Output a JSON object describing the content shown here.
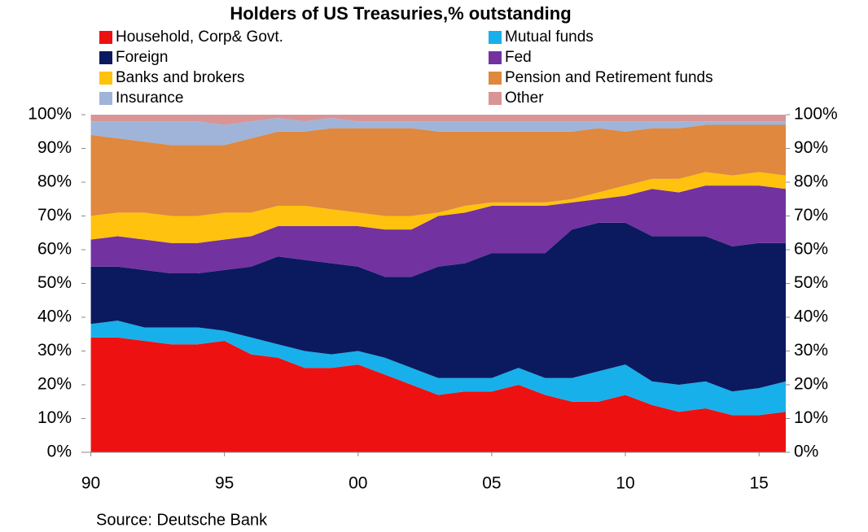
{
  "chart_data": {
    "type": "stacked-area",
    "title": "Holders of US Treasuries,% outstanding",
    "source": "Source: Deutsche Bank",
    "x": [
      1990,
      1991,
      1992,
      1993,
      1994,
      1995,
      1996,
      1997,
      1998,
      1999,
      2000,
      2001,
      2002,
      2003,
      2004,
      2005,
      2006,
      2007,
      2008,
      2009,
      2010,
      2011,
      2012,
      2013,
      2014,
      2015,
      2016
    ],
    "xlim": [
      1989.8,
      2016
    ],
    "xticks": [
      {
        "value": 1990,
        "label": "90"
      },
      {
        "value": 1995,
        "label": "95"
      },
      {
        "value": 2000,
        "label": "00"
      },
      {
        "value": 2005,
        "label": "05"
      },
      {
        "value": 2010,
        "label": "10"
      },
      {
        "value": 2015,
        "label": "15"
      }
    ],
    "ylim": [
      0,
      100
    ],
    "yticks": [
      {
        "value": 0,
        "label": "0%"
      },
      {
        "value": 10,
        "label": "10%"
      },
      {
        "value": 20,
        "label": "20%"
      },
      {
        "value": 30,
        "label": "30%"
      },
      {
        "value": 40,
        "label": "40%"
      },
      {
        "value": 50,
        "label": "50%"
      },
      {
        "value": 60,
        "label": "60%"
      },
      {
        "value": 70,
        "label": "70%"
      },
      {
        "value": 80,
        "label": "80%"
      },
      {
        "value": 90,
        "label": "90%"
      },
      {
        "value": 100,
        "label": "100%"
      }
    ],
    "series": [
      {
        "name": "Household, Corp& Govt.",
        "color": "#ee1111",
        "values": [
          34,
          34,
          33,
          32,
          32,
          33,
          29,
          28,
          25,
          25,
          26,
          23,
          20,
          17,
          18,
          18,
          20,
          17,
          15,
          15,
          17,
          14,
          12,
          13,
          11,
          11,
          12
        ]
      },
      {
        "name": "Mutual funds",
        "color": "#18b0ea",
        "values": [
          4,
          5,
          4,
          5,
          5,
          3,
          5,
          4,
          5,
          4,
          4,
          5,
          5,
          5,
          4,
          4,
          5,
          5,
          7,
          9,
          9,
          7,
          8,
          8,
          7,
          8,
          9
        ]
      },
      {
        "name": "Foreign",
        "color": "#0b1a5e",
        "values": [
          17,
          16,
          17,
          16,
          16,
          18,
          21,
          26,
          27,
          27,
          25,
          24,
          27,
          33,
          34,
          37,
          34,
          37,
          44,
          44,
          42,
          43,
          44,
          43,
          43,
          43,
          41
        ]
      },
      {
        "name": "Fed",
        "color": "#7232a0",
        "values": [
          8,
          9,
          9,
          9,
          9,
          9,
          9,
          9,
          10,
          11,
          12,
          14,
          14,
          15,
          15,
          14,
          14,
          14,
          8,
          7,
          8,
          14,
          13,
          15,
          18,
          17,
          16
        ]
      },
      {
        "name": "Banks and brokers",
        "color": "#ffc20e",
        "values": [
          7,
          7,
          8,
          8,
          8,
          8,
          7,
          6,
          6,
          5,
          4,
          4,
          4,
          1,
          2,
          1,
          1,
          1,
          1,
          2,
          3,
          3,
          4,
          4,
          3,
          4,
          4
        ]
      },
      {
        "name": "Pension and Retirement funds",
        "color": "#df883e",
        "values": [
          24,
          22,
          21,
          21,
          21,
          20,
          22,
          22,
          22,
          24,
          25,
          26,
          26,
          24,
          22,
          21,
          21,
          21,
          20,
          19,
          16,
          15,
          15,
          14,
          15,
          14,
          15
        ]
      },
      {
        "name": "Insurance",
        "color": "#9fb4d8",
        "values": [
          4,
          5,
          6,
          7,
          7,
          6,
          5,
          4,
          3,
          3,
          2,
          2,
          2,
          3,
          3,
          3,
          3,
          3,
          3,
          2,
          3,
          2,
          2,
          1,
          1,
          1,
          1
        ]
      },
      {
        "name": "Other",
        "color": "#d99496",
        "values": [
          2,
          2,
          2,
          2,
          2,
          3,
          2,
          1,
          2,
          1,
          2,
          2,
          2,
          2,
          2,
          2,
          2,
          2,
          2,
          2,
          2,
          2,
          2,
          2,
          2,
          2,
          2
        ]
      }
    ]
  }
}
